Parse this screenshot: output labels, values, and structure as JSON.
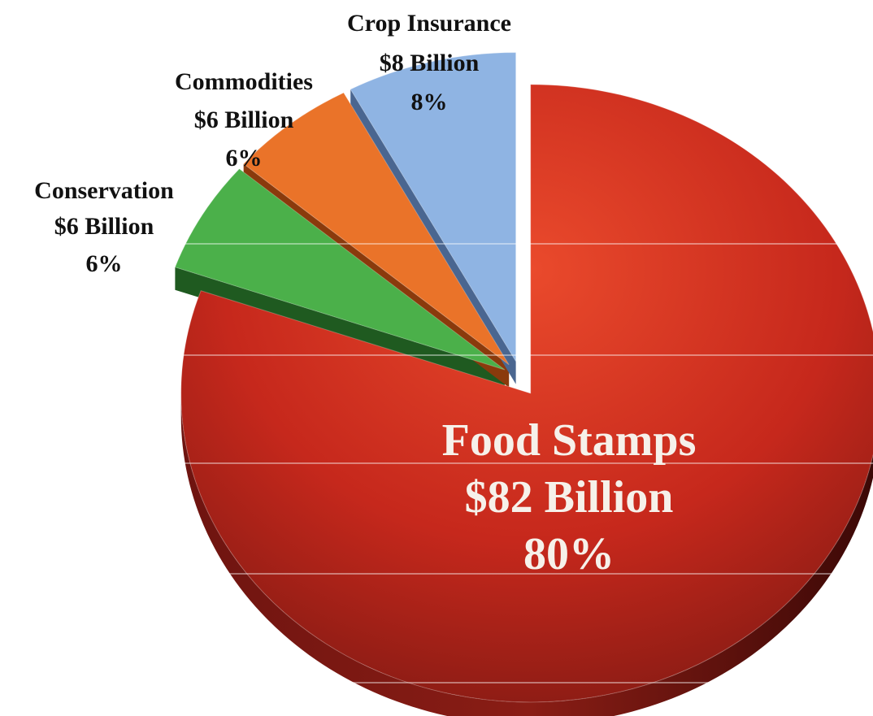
{
  "chart_data": {
    "type": "pie",
    "title": "",
    "start_angle_deg": 0,
    "direction": "clockwise",
    "slices": [
      {
        "name": "Food Stamps",
        "value_label": "$82 Billion",
        "value": 82,
        "percent": 80,
        "percent_label": "80%",
        "color": "#d8301f",
        "side_color": "#5a0d0a",
        "exploded": true
      },
      {
        "name": "Conservation",
        "value_label": "$6 Billion",
        "value": 6,
        "percent": 6,
        "percent_label": "6%",
        "color": "#4bb04a",
        "side_color": "#1f5a20",
        "exploded": true
      },
      {
        "name": "Commodities",
        "value_label": "$6 Billion",
        "value": 6,
        "percent": 6,
        "percent_label": "6%",
        "color": "#ea7329",
        "side_color": "#8a3a0c",
        "exploded": true
      },
      {
        "name": "Crop Insurance",
        "value_label": "$8 Billion",
        "value": 8,
        "percent": 8,
        "percent_label": "8%",
        "color": "#8fb4e3",
        "side_color": "#4a6690",
        "exploded": true
      }
    ],
    "legend": "none",
    "grid": "horizontal lines"
  }
}
